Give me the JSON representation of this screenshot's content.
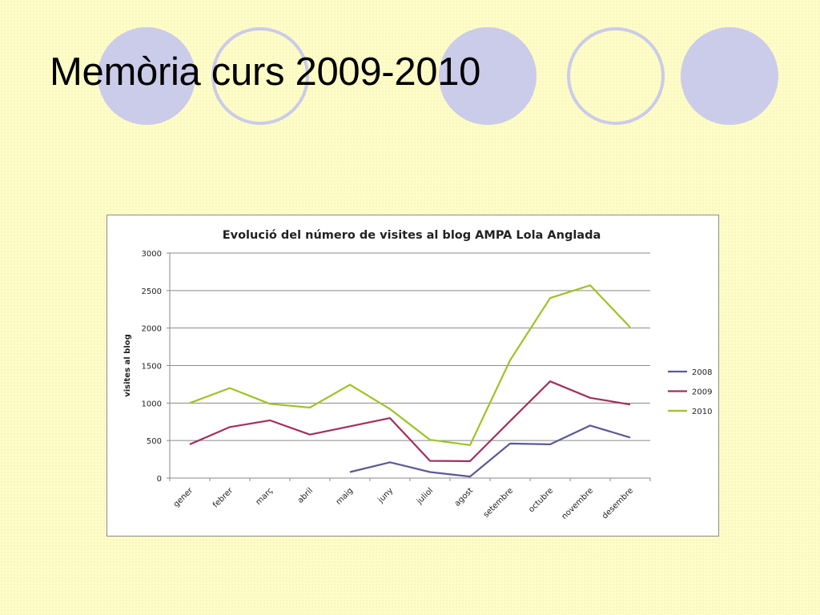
{
  "slide": {
    "title": "Memòria curs 2009-2010"
  },
  "chart_data": {
    "type": "line",
    "title": "Evolució del número de visites al blog AMPA Lola Anglada",
    "xlabel": "",
    "ylabel": "visites al blog",
    "ylim": [
      0,
      3000
    ],
    "yticks": [
      0,
      500,
      1000,
      1500,
      2000,
      2500,
      3000
    ],
    "grid": true,
    "legend_position": "right",
    "categories": [
      "gener",
      "febrer",
      "març",
      "abril",
      "maig",
      "juny",
      "juliol",
      "agost",
      "setembre",
      "octubre",
      "novembre",
      "desembre"
    ],
    "series": [
      {
        "name": "2008",
        "color": "#5a5a96",
        "values": [
          null,
          null,
          null,
          null,
          80,
          210,
          80,
          20,
          460,
          450,
          700,
          540
        ]
      },
      {
        "name": "2009",
        "color": "#a0305e",
        "values": [
          450,
          680,
          770,
          580,
          690,
          800,
          230,
          225,
          760,
          1290,
          1070,
          980
        ]
      },
      {
        "name": "2010",
        "color": "#9cc425",
        "values": [
          1000,
          1200,
          990,
          940,
          1245,
          920,
          510,
          440,
          1570,
          2400,
          2570,
          2010
        ]
      }
    ]
  }
}
